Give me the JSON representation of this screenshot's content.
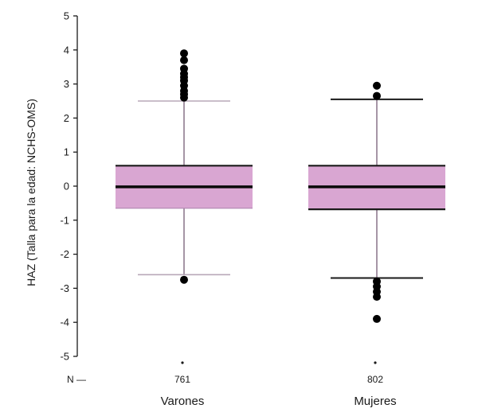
{
  "chart_data": {
    "type": "box",
    "ylabel": "HAZ (Talla para la edad: NCHS-OMS)",
    "ylim": [
      -5,
      5
    ],
    "yticks": [
      5,
      4,
      3,
      2,
      1,
      0,
      -1,
      -2,
      -3,
      -4,
      -5
    ],
    "n_prefix": "N —",
    "box_fill": "#d9a6d2",
    "whisker_color": "#6b4f6b",
    "groups": [
      {
        "name": "Varones",
        "n": "761",
        "q1": -0.65,
        "median": -0.02,
        "q3": 0.6,
        "whisker_low": -2.6,
        "whisker_high": 2.5,
        "outliers": [
          3.9,
          3.7,
          3.45,
          3.3,
          3.2,
          3.1,
          2.95,
          2.8,
          2.7,
          2.6,
          -2.75
        ]
      },
      {
        "name": "Mujeres",
        "n": "802",
        "q1": -0.68,
        "median": -0.02,
        "q3": 0.6,
        "whisker_low": -2.7,
        "whisker_high": 2.55,
        "outliers": [
          2.95,
          2.65,
          -2.8,
          -2.95,
          -3.1,
          -3.25,
          -3.9
        ]
      }
    ]
  }
}
